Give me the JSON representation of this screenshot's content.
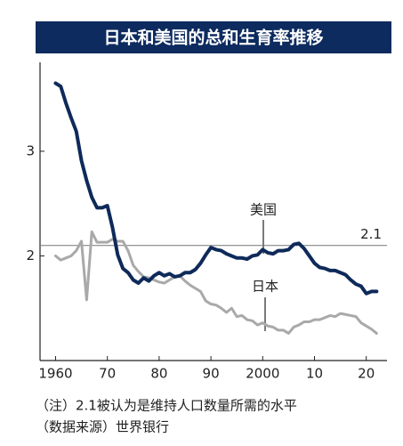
{
  "chart_data": {
    "type": "line",
    "title": "日本和美国的总和生育率推移",
    "x": [
      1960,
      1961,
      1962,
      1963,
      1964,
      1965,
      1966,
      1967,
      1968,
      1969,
      1970,
      1971,
      1972,
      1973,
      1974,
      1975,
      1976,
      1977,
      1978,
      1979,
      1980,
      1981,
      1982,
      1983,
      1984,
      1985,
      1986,
      1987,
      1988,
      1989,
      1990,
      1991,
      1992,
      1993,
      1994,
      1995,
      1996,
      1997,
      1998,
      1999,
      2000,
      2001,
      2002,
      2003,
      2004,
      2005,
      2006,
      2007,
      2008,
      2009,
      2010,
      2011,
      2012,
      2013,
      2014,
      2015,
      2016,
      2017,
      2018,
      2019,
      2020,
      2021,
      2022
    ],
    "series": [
      {
        "name": "美国",
        "color": "#0e2a5a",
        "width": 4,
        "values": [
          3.65,
          3.62,
          3.46,
          3.32,
          3.19,
          2.91,
          2.72,
          2.56,
          2.46,
          2.46,
          2.48,
          2.27,
          2.01,
          1.88,
          1.84,
          1.77,
          1.74,
          1.79,
          1.76,
          1.81,
          1.84,
          1.81,
          1.83,
          1.8,
          1.81,
          1.84,
          1.84,
          1.87,
          1.93,
          2.01,
          2.08,
          2.06,
          2.05,
          2.02,
          2.0,
          1.98,
          1.98,
          1.97,
          2.0,
          2.01,
          2.06,
          2.03,
          2.02,
          2.05,
          2.05,
          2.06,
          2.11,
          2.12,
          2.07,
          2.0,
          1.93,
          1.89,
          1.88,
          1.86,
          1.86,
          1.84,
          1.82,
          1.77,
          1.73,
          1.71,
          1.64,
          1.66,
          1.66
        ]
      },
      {
        "name": "日本",
        "color": "#a9a9a9",
        "width": 3,
        "values": [
          2.0,
          1.96,
          1.98,
          2.0,
          2.05,
          2.14,
          1.58,
          2.23,
          2.13,
          2.13,
          2.13,
          2.16,
          2.14,
          2.14,
          2.05,
          1.91,
          1.85,
          1.8,
          1.79,
          1.77,
          1.75,
          1.74,
          1.77,
          1.8,
          1.81,
          1.76,
          1.72,
          1.69,
          1.66,
          1.57,
          1.54,
          1.53,
          1.5,
          1.46,
          1.5,
          1.42,
          1.43,
          1.39,
          1.38,
          1.34,
          1.36,
          1.33,
          1.32,
          1.29,
          1.29,
          1.26,
          1.32,
          1.34,
          1.37,
          1.37,
          1.39,
          1.39,
          1.41,
          1.43,
          1.42,
          1.45,
          1.44,
          1.43,
          1.42,
          1.36,
          1.33,
          1.3,
          1.26
        ]
      }
    ],
    "xlim": [
      1957,
      2024
    ],
    "xticks": [
      {
        "value": 1960,
        "label": "1960"
      },
      {
        "value": 1970,
        "label": "70"
      },
      {
        "value": 1980,
        "label": "80"
      },
      {
        "value": 1990,
        "label": "90"
      },
      {
        "value": 2000,
        "label": "2000"
      },
      {
        "value": 2010,
        "label": "10"
      },
      {
        "value": 2020,
        "label": "20"
      }
    ],
    "ylim": [
      1.0,
      3.85
    ],
    "yticks": [
      2,
      3
    ],
    "reference_line": 2.1,
    "notes": [
      "（注）2.1被认为是维持人口数量所需的水平",
      "（数据来源）世界银行"
    ]
  }
}
